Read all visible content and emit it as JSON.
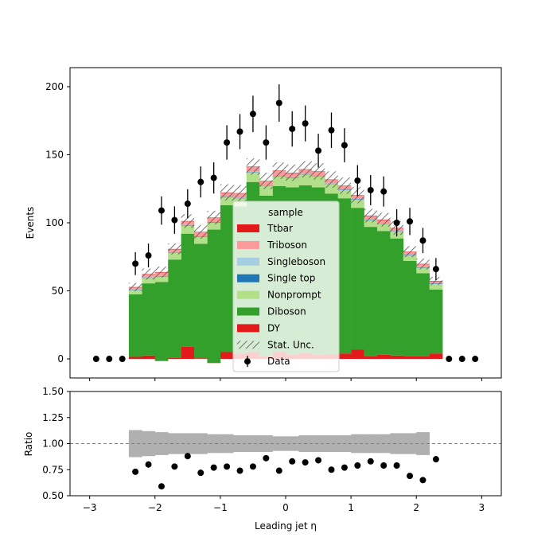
{
  "chart_data": [
    {
      "type": "bar",
      "stacked": true,
      "xlabel": "Leading jet  η",
      "ylabel": "Events",
      "xlim": [
        -3.3,
        3.3
      ],
      "ylim": [
        -14,
        214
      ],
      "xticks": [
        -3,
        -2,
        -1,
        0,
        1,
        2,
        3
      ],
      "yticks": [
        0,
        50,
        100,
        150,
        200
      ],
      "bin_edges": [
        -2.4,
        -2.2,
        -2.0,
        -1.8,
        -1.6,
        -1.4,
        -1.2,
        -1.0,
        -0.8,
        -0.6,
        -0.4,
        -0.2,
        0.0,
        0.2,
        0.4,
        0.6,
        0.8,
        1.0,
        1.2,
        1.4,
        1.6,
        1.8,
        2.0,
        2.2,
        2.4
      ],
      "series": [
        {
          "name": "DY",
          "color": "#e31a1c",
          "values": [
            1.5,
            2.5,
            -1.5,
            1.0,
            9.0,
            0.5,
            -3.0,
            5.0,
            4.0,
            5.0,
            2.0,
            5.0,
            3.0,
            4.5,
            3.0,
            3.5,
            4.0,
            7.0,
            2.0,
            3.0,
            2.5,
            2.0,
            2.0,
            4.0
          ]
        },
        {
          "name": "Diboson",
          "color": "#33a02c",
          "values": [
            46,
            53,
            58,
            72,
            83,
            84,
            98,
            108,
            108,
            125,
            118,
            122,
            123,
            123,
            123,
            118,
            114,
            104,
            95,
            91,
            86,
            70,
            61,
            47
          ]
        },
        {
          "name": "Nonprompt",
          "color": "#b2df8a",
          "values": [
            3,
            4,
            4,
            5,
            6,
            5,
            5,
            6,
            6,
            7,
            7,
            7,
            7,
            8,
            8,
            7,
            6,
            6,
            5,
            5,
            5,
            4,
            4,
            4
          ]
        },
        {
          "name": "Single top",
          "color": "#1f78b4",
          "values": [
            0.3,
            0.3,
            0.3,
            0.3,
            0.3,
            0.3,
            0.3,
            0.3,
            0.3,
            0.3,
            0.3,
            0.3,
            0.3,
            0.3,
            0.3,
            0.3,
            0.3,
            0.3,
            0.3,
            0.3,
            0.3,
            0.3,
            0.3,
            0.3
          ]
        },
        {
          "name": "Singleboson",
          "color": "#a6cee3",
          "values": [
            0.2,
            0.2,
            0.2,
            0.2,
            0.2,
            0.2,
            0.2,
            0.2,
            0.2,
            0.2,
            0.2,
            0.2,
            0.2,
            0.2,
            0.2,
            0.2,
            0.2,
            0.2,
            0.2,
            0.2,
            0.2,
            0.2,
            0.2,
            0.2
          ]
        },
        {
          "name": "Triboson",
          "color": "#fb9a99",
          "values": [
            1.5,
            2.0,
            2.5,
            2.0,
            2.5,
            3.0,
            3.0,
            2.5,
            3.0,
            3.5,
            3.0,
            3.5,
            3.0,
            3.0,
            3.0,
            2.5,
            2.5,
            2.5,
            2.5,
            2.5,
            2.0,
            2.0,
            2.0,
            1.5
          ]
        },
        {
          "name": "Ttbar",
          "color": "#e31a1c",
          "values": [
            0.3,
            0.3,
            0.3,
            0.3,
            0.3,
            0.3,
            0.3,
            0.3,
            0.3,
            0.3,
            0.3,
            0.3,
            0.3,
            0.3,
            0.3,
            0.3,
            0.3,
            0.3,
            0.3,
            0.3,
            0.3,
            0.3,
            0.3,
            0.3
          ]
        }
      ],
      "stat_unc": [
        3,
        4,
        4,
        4,
        5,
        5,
        5,
        6,
        6,
        6,
        6,
        6,
        6,
        6,
        6,
        6,
        6,
        6,
        5,
        5,
        5,
        4,
        4,
        3
      ],
      "data": {
        "name": "Data",
        "x": [
          -2.9,
          -2.7,
          -2.5,
          -2.3,
          -2.1,
          -1.9,
          -1.7,
          -1.5,
          -1.3,
          -1.1,
          -0.9,
          -0.7,
          -0.5,
          -0.3,
          -0.1,
          0.1,
          0.3,
          0.5,
          0.7,
          0.9,
          1.1,
          1.3,
          1.5,
          1.7,
          1.9,
          2.1,
          2.3,
          2.5,
          2.7,
          2.9
        ],
        "y": [
          0,
          0,
          0,
          70,
          76,
          109,
          102,
          114,
          130,
          133,
          159,
          167,
          180,
          159,
          188,
          169,
          173,
          153,
          168,
          157,
          131,
          124,
          123,
          100,
          101,
          87,
          66,
          0,
          0,
          0
        ],
        "err": [
          0,
          0,
          0,
          8.4,
          8.7,
          10.4,
          10.1,
          10.7,
          11.4,
          11.5,
          12.6,
          12.9,
          13.4,
          12.6,
          13.7,
          13.0,
          13.2,
          12.4,
          13.0,
          12.5,
          11.4,
          11.1,
          11.1,
          10.0,
          10.0,
          9.3,
          8.1,
          0,
          0,
          0
        ]
      },
      "legend": {
        "title": "sample",
        "placement": "lower-center",
        "entries": [
          "Ttbar",
          "Triboson",
          "Singleboson",
          "Single top",
          "Nonprompt",
          "Diboson",
          "DY",
          "Stat. Unc.",
          "Data"
        ]
      }
    },
    {
      "type": "scatter",
      "xlabel": "Leading jet  η",
      "ylabel": "Ratio",
      "xlim": [
        -3.3,
        3.3
      ],
      "ylim": [
        0.5,
        1.5
      ],
      "xticks": [
        -3,
        -2,
        -1,
        0,
        1,
        2,
        3
      ],
      "xticklabels": [
        "−3",
        "−2",
        "−1",
        "0",
        "1",
        "2",
        "3"
      ],
      "yticks": [
        0.5,
        0.75,
        1.0,
        1.25,
        1.5
      ],
      "yticklabels": [
        "0.50",
        "0.75",
        "1.00",
        "1.25",
        "1.50"
      ],
      "reference_line": 1.0,
      "band_bin_edges": [
        -2.4,
        -2.2,
        -2.0,
        -1.8,
        -1.6,
        -1.4,
        -1.2,
        -1.0,
        -0.8,
        -0.6,
        -0.4,
        -0.2,
        0.0,
        0.2,
        0.4,
        0.6,
        0.8,
        1.0,
        1.2,
        1.4,
        1.6,
        1.8,
        2.0,
        2.2
      ],
      "band_lo": [
        0.87,
        0.88,
        0.89,
        0.9,
        0.9,
        0.9,
        0.91,
        0.91,
        0.92,
        0.92,
        0.92,
        0.93,
        0.93,
        0.92,
        0.92,
        0.92,
        0.92,
        0.91,
        0.91,
        0.91,
        0.9,
        0.9,
        0.89
      ],
      "band_hi": [
        1.13,
        1.12,
        1.11,
        1.1,
        1.1,
        1.1,
        1.09,
        1.09,
        1.08,
        1.08,
        1.08,
        1.07,
        1.07,
        1.08,
        1.08,
        1.08,
        1.08,
        1.09,
        1.09,
        1.09,
        1.1,
        1.1,
        1.11
      ],
      "points": {
        "x": [
          -2.3,
          -2.1,
          -1.9,
          -1.7,
          -1.5,
          -1.3,
          -1.1,
          -0.9,
          -0.7,
          -0.5,
          -0.3,
          -0.1,
          0.1,
          0.3,
          0.5,
          0.7,
          0.9,
          1.1,
          1.3,
          1.5,
          1.7,
          1.9,
          2.1,
          2.3
        ],
        "y": [
          0.73,
          0.8,
          0.59,
          0.78,
          0.88,
          0.72,
          0.77,
          0.78,
          0.74,
          0.78,
          0.86,
          0.74,
          0.83,
          0.82,
          0.84,
          0.75,
          0.77,
          0.79,
          0.83,
          0.79,
          0.79,
          0.69,
          0.65,
          0.85
        ],
        "err": [
          0.02,
          0.03,
          0,
          0,
          0.03,
          0,
          0,
          0,
          0,
          0,
          0,
          0,
          0,
          0,
          0,
          0,
          0,
          0,
          0,
          0,
          0,
          0,
          0,
          0.03
        ]
      }
    }
  ]
}
